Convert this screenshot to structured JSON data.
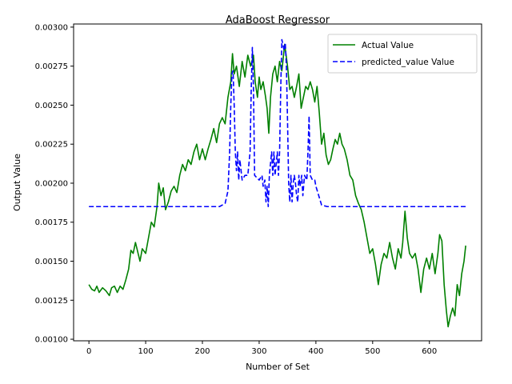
{
  "chart_data": {
    "type": "line",
    "title": "AdaBoost Regressor",
    "xlabel": "Number of Set",
    "ylabel": "Output Value",
    "xlim": [
      -27,
      692
    ],
    "ylim": [
      0.00099,
      0.00302
    ],
    "xticks": [
      0,
      100,
      200,
      300,
      400,
      500,
      600
    ],
    "yticks": [
      0.001,
      0.00125,
      0.0015,
      0.00175,
      0.002,
      0.00225,
      0.0025,
      0.00275,
      0.003
    ],
    "ytick_labels": [
      "0.00100",
      "0.00125",
      "0.00150",
      "0.00175",
      "0.00200",
      "0.00225",
      "0.00250",
      "0.00275",
      "0.00300"
    ],
    "grid": false,
    "legend_position": "top-right",
    "series": [
      {
        "name": "Actual Value",
        "color": "#008000",
        "style": "solid",
        "points": [
          [
            0,
            0.00135
          ],
          [
            5,
            0.00132
          ],
          [
            10,
            0.00131
          ],
          [
            14,
            0.00134
          ],
          [
            18,
            0.0013
          ],
          [
            24,
            0.00133
          ],
          [
            30,
            0.00131
          ],
          [
            36,
            0.00128
          ],
          [
            40,
            0.00133
          ],
          [
            45,
            0.00134
          ],
          [
            50,
            0.0013
          ],
          [
            55,
            0.00134
          ],
          [
            60,
            0.00132
          ],
          [
            65,
            0.00138
          ],
          [
            70,
            0.00145
          ],
          [
            74,
            0.00157
          ],
          [
            78,
            0.00155
          ],
          [
            82,
            0.00162
          ],
          [
            86,
            0.00156
          ],
          [
            90,
            0.0015
          ],
          [
            94,
            0.00158
          ],
          [
            100,
            0.00155
          ],
          [
            105,
            0.00165
          ],
          [
            110,
            0.00175
          ],
          [
            115,
            0.00172
          ],
          [
            120,
            0.00185
          ],
          [
            123,
            0.002
          ],
          [
            127,
            0.00192
          ],
          [
            131,
            0.00197
          ],
          [
            135,
            0.00183
          ],
          [
            140,
            0.00188
          ],
          [
            145,
            0.00195
          ],
          [
            150,
            0.00198
          ],
          [
            155,
            0.00194
          ],
          [
            160,
            0.00205
          ],
          [
            165,
            0.00212
          ],
          [
            170,
            0.00208
          ],
          [
            175,
            0.00215
          ],
          [
            180,
            0.00212
          ],
          [
            185,
            0.0022
          ],
          [
            190,
            0.00225
          ],
          [
            195,
            0.00215
          ],
          [
            200,
            0.00222
          ],
          [
            205,
            0.00215
          ],
          [
            210,
            0.00222
          ],
          [
            215,
            0.00228
          ],
          [
            220,
            0.00235
          ],
          [
            225,
            0.00226
          ],
          [
            230,
            0.00238
          ],
          [
            235,
            0.00242
          ],
          [
            240,
            0.00238
          ],
          [
            245,
            0.00255
          ],
          [
            250,
            0.00265
          ],
          [
            253,
            0.00283
          ],
          [
            256,
            0.0027
          ],
          [
            260,
            0.00275
          ],
          [
            265,
            0.00262
          ],
          [
            270,
            0.00278
          ],
          [
            275,
            0.00268
          ],
          [
            280,
            0.00282
          ],
          [
            285,
            0.00275
          ],
          [
            290,
            0.00282
          ],
          [
            293,
            0.00265
          ],
          [
            297,
            0.00255
          ],
          [
            300,
            0.00268
          ],
          [
            303,
            0.0026
          ],
          [
            307,
            0.00265
          ],
          [
            311,
            0.00256
          ],
          [
            314,
            0.00248
          ],
          [
            317,
            0.00232
          ],
          [
            320,
            0.00255
          ],
          [
            324,
            0.0027
          ],
          [
            328,
            0.00275
          ],
          [
            332,
            0.00265
          ],
          [
            336,
            0.00278
          ],
          [
            340,
            0.00272
          ],
          [
            345,
            0.00289
          ],
          [
            350,
            0.00275
          ],
          [
            354,
            0.0026
          ],
          [
            358,
            0.00262
          ],
          [
            362,
            0.00255
          ],
          [
            366,
            0.00262
          ],
          [
            370,
            0.0027
          ],
          [
            374,
            0.00248
          ],
          [
            378,
            0.00255
          ],
          [
            382,
            0.00262
          ],
          [
            386,
            0.0026
          ],
          [
            390,
            0.00265
          ],
          [
            394,
            0.0026
          ],
          [
            398,
            0.00252
          ],
          [
            402,
            0.00262
          ],
          [
            406,
            0.00245
          ],
          [
            410,
            0.00225
          ],
          [
            414,
            0.00232
          ],
          [
            418,
            0.00218
          ],
          [
            422,
            0.00212
          ],
          [
            426,
            0.00215
          ],
          [
            430,
            0.00222
          ],
          [
            434,
            0.00228
          ],
          [
            438,
            0.00225
          ],
          [
            442,
            0.00232
          ],
          [
            446,
            0.00225
          ],
          [
            450,
            0.00222
          ],
          [
            455,
            0.00215
          ],
          [
            460,
            0.00205
          ],
          [
            465,
            0.00202
          ],
          [
            470,
            0.00192
          ],
          [
            475,
            0.00187
          ],
          [
            480,
            0.00183
          ],
          [
            485,
            0.00175
          ],
          [
            490,
            0.00165
          ],
          [
            495,
            0.00155
          ],
          [
            500,
            0.00158
          ],
          [
            505,
            0.00148
          ],
          [
            510,
            0.00135
          ],
          [
            515,
            0.00148
          ],
          [
            520,
            0.00155
          ],
          [
            525,
            0.00152
          ],
          [
            530,
            0.00162
          ],
          [
            535,
            0.00152
          ],
          [
            540,
            0.00145
          ],
          [
            545,
            0.00158
          ],
          [
            550,
            0.00152
          ],
          [
            553,
            0.00162
          ],
          [
            557,
            0.00182
          ],
          [
            561,
            0.00165
          ],
          [
            565,
            0.00155
          ],
          [
            570,
            0.00152
          ],
          [
            575,
            0.00155
          ],
          [
            580,
            0.00145
          ],
          [
            585,
            0.0013
          ],
          [
            590,
            0.00145
          ],
          [
            595,
            0.00152
          ],
          [
            600,
            0.00145
          ],
          [
            605,
            0.00155
          ],
          [
            610,
            0.00142
          ],
          [
            615,
            0.00155
          ],
          [
            618,
            0.00167
          ],
          [
            622,
            0.00163
          ],
          [
            626,
            0.00135
          ],
          [
            630,
            0.00118
          ],
          [
            633,
            0.00108
          ],
          [
            637,
            0.00115
          ],
          [
            641,
            0.0012
          ],
          [
            645,
            0.00115
          ],
          [
            649,
            0.00135
          ],
          [
            653,
            0.00128
          ],
          [
            657,
            0.00142
          ],
          [
            661,
            0.0015
          ],
          [
            664,
            0.0016
          ]
        ]
      },
      {
        "name": "predicted_value Value",
        "color": "#0000ff",
        "style": "dashed",
        "points": [
          [
            0,
            0.00185
          ],
          [
            230,
            0.00185
          ],
          [
            240,
            0.00187
          ],
          [
            245,
            0.00195
          ],
          [
            248,
            0.0022
          ],
          [
            250,
            0.0025
          ],
          [
            252,
            0.0027
          ],
          [
            254,
            0.00272
          ],
          [
            256,
            0.0025
          ],
          [
            258,
            0.0022
          ],
          [
            260,
            0.00208
          ],
          [
            262,
            0.0022
          ],
          [
            264,
            0.00202
          ],
          [
            266,
            0.00215
          ],
          [
            270,
            0.00202
          ],
          [
            275,
            0.00205
          ],
          [
            280,
            0.00205
          ],
          [
            284,
            0.0022
          ],
          [
            286,
            0.0026
          ],
          [
            288,
            0.00287
          ],
          [
            290,
            0.0026
          ],
          [
            292,
            0.00205
          ],
          [
            300,
            0.00202
          ],
          [
            305,
            0.00205
          ],
          [
            307,
            0.00198
          ],
          [
            310,
            0.00202
          ],
          [
            312,
            0.00188
          ],
          [
            314,
            0.00198
          ],
          [
            316,
            0.00185
          ],
          [
            318,
            0.00205
          ],
          [
            322,
            0.0022
          ],
          [
            324,
            0.00205
          ],
          [
            326,
            0.0022
          ],
          [
            328,
            0.00205
          ],
          [
            332,
            0.0022
          ],
          [
            334,
            0.00205
          ],
          [
            336,
            0.0022
          ],
          [
            338,
            0.0026
          ],
          [
            340,
            0.00292
          ],
          [
            344,
            0.00285
          ],
          [
            346,
            0.0029
          ],
          [
            348,
            0.00275
          ],
          [
            350,
            0.0024
          ],
          [
            352,
            0.002
          ],
          [
            354,
            0.00188
          ],
          [
            356,
            0.00205
          ],
          [
            358,
            0.00188
          ],
          [
            360,
            0.002
          ],
          [
            362,
            0.00205
          ],
          [
            364,
            0.002
          ],
          [
            366,
            0.00192
          ],
          [
            368,
            0.00188
          ],
          [
            370,
            0.00205
          ],
          [
            372,
            0.00198
          ],
          [
            375,
            0.00205
          ],
          [
            377,
            0.00192
          ],
          [
            380,
            0.00205
          ],
          [
            384,
            0.00202
          ],
          [
            386,
            0.0022
          ],
          [
            388,
            0.00243
          ],
          [
            390,
            0.00205
          ],
          [
            394,
            0.00202
          ],
          [
            398,
            0.00202
          ],
          [
            400,
            0.00198
          ],
          [
            405,
            0.00192
          ],
          [
            410,
            0.00186
          ],
          [
            420,
            0.00185
          ],
          [
            664,
            0.00185
          ]
        ]
      }
    ]
  }
}
